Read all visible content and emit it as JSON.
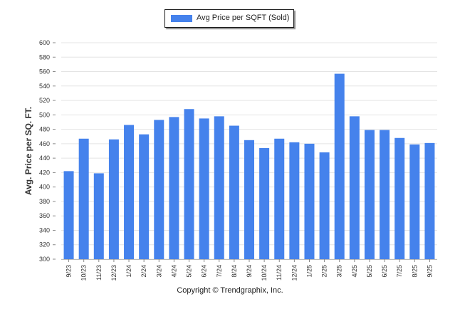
{
  "chart_data": {
    "type": "bar",
    "title": "",
    "xlabel": "",
    "ylabel": "Avg. Price per SQ. FT.",
    "ylim": [
      300,
      600
    ],
    "yticks": [
      300,
      320,
      340,
      360,
      380,
      400,
      420,
      440,
      460,
      480,
      500,
      520,
      540,
      560,
      580,
      600
    ],
    "grid": true,
    "legend": {
      "position": "top-center",
      "entries": [
        "Avg Price per SQFT (Sold)"
      ]
    },
    "series": [
      {
        "name": "Avg Price per SQFT (Sold)",
        "color": "#4582ec",
        "values": [
          422,
          467,
          419,
          466,
          486,
          473,
          493,
          497,
          508,
          495,
          498,
          485,
          465,
          454,
          467,
          462,
          460,
          448,
          557,
          498,
          479,
          479,
          468,
          459,
          461
        ]
      }
    ],
    "categories": [
      "9/23",
      "10/23",
      "11/23",
      "12/23",
      "1/24",
      "2/24",
      "3/24",
      "4/24",
      "5/24",
      "6/24",
      "7/24",
      "8/24",
      "9/24",
      "10/24",
      "11/24",
      "12/24",
      "1/25",
      "2/25",
      "3/25",
      "4/25",
      "5/25",
      "6/25",
      "7/25",
      "8/25",
      "9/25"
    ]
  },
  "footer": {
    "copyright": "Copyright © Trendgraphix, Inc."
  }
}
